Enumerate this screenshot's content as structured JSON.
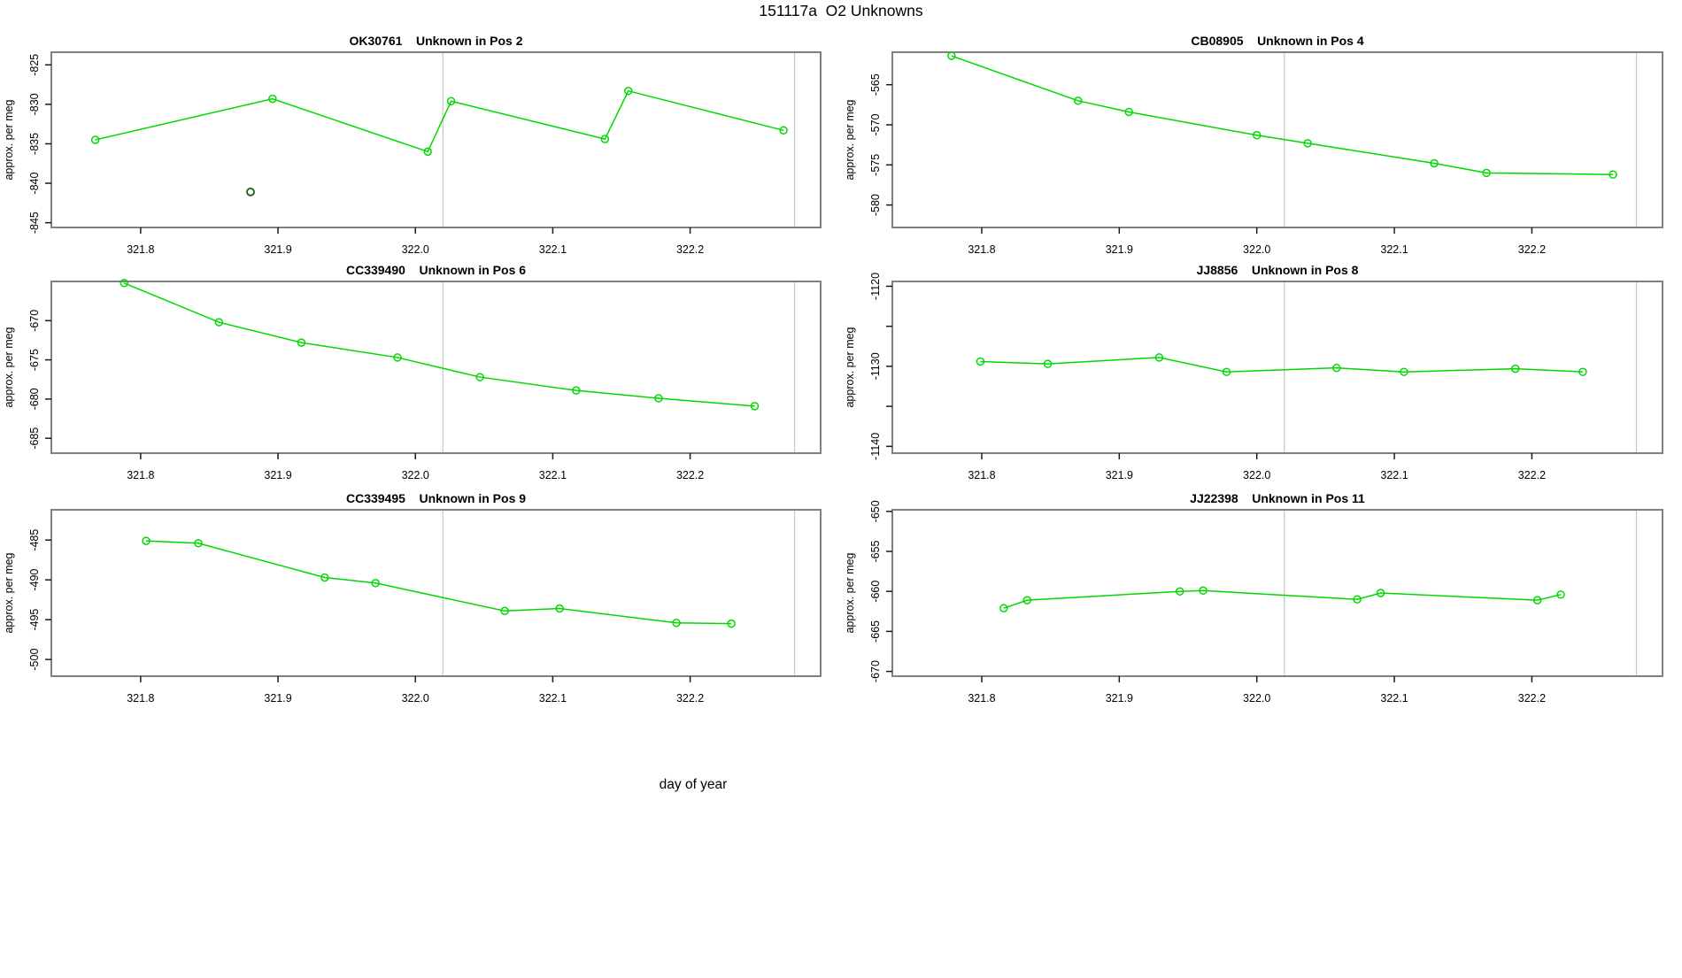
{
  "title": "151117a  O2 Unknowns",
  "xlabel": "day of year",
  "ylabel": "approx. per meg",
  "colors": {
    "series": "#00D900",
    "outlier": "#156415",
    "panel_border": "#808080",
    "ref_line": "#c6c6c6",
    "tick": "#1a1a1a",
    "text": "#000000"
  },
  "chart_data": {
    "type": "line",
    "title": "151117a  O2 Unknowns",
    "xlabel": "day of year",
    "ylabel": "approx. per meg",
    "layout_hint": "6 small-multiple panels, 2 columns x 3 rows, open-circle markers, no grid",
    "xlim": [
      321.735,
      322.295
    ],
    "xticks": [
      321.8,
      321.9,
      322.0,
      322.1,
      322.2
    ],
    "xtick_labels": [
      "321.8",
      "321.9",
      "322.0",
      "322.1",
      "322.2"
    ],
    "vlines": [
      322.02,
      322.276
    ],
    "panels": [
      {
        "sample": "OK30761",
        "desc": "Unknown in Pos 2",
        "ylim": [
          -845.6,
          -823.4
        ],
        "yticks": [
          -825,
          -830,
          -835,
          -840,
          -845
        ],
        "ytick_labels": [
          "-825",
          "-830",
          "-835",
          "-840",
          "-845"
        ],
        "x": [
          321.767,
          321.896,
          322.009,
          322.026,
          322.138,
          322.155,
          322.268
        ],
        "y": [
          -834.5,
          -829.3,
          -836.0,
          -829.6,
          -834.4,
          -828.3,
          -833.3
        ],
        "outliers": [
          {
            "x": 321.88,
            "y": -841.1
          }
        ]
      },
      {
        "sample": "CB08905",
        "desc": "Unknown in Pos 4",
        "ylim": [
          -582.8,
          -560.95
        ],
        "yticks": [
          -565,
          -570,
          -575,
          -580
        ],
        "ytick_labels": [
          "-565",
          "-570",
          "-575",
          "-580"
        ],
        "x": [
          321.778,
          321.87,
          321.907,
          322.0,
          322.037,
          322.129,
          322.167,
          322.259
        ],
        "y": [
          -561.4,
          -567.0,
          -568.4,
          -571.3,
          -572.3,
          -574.8,
          -576.0,
          -576.2
        ],
        "outliers": []
      },
      {
        "sample": "CC339490",
        "desc": "Unknown in Pos 6",
        "ylim": [
          -686.9,
          -665.0
        ],
        "yticks": [
          -670,
          -675,
          -680,
          -685
        ],
        "ytick_labels": [
          "-670",
          "-675",
          "-680",
          "-685"
        ],
        "x": [
          321.788,
          321.857,
          321.917,
          321.987,
          322.047,
          322.117,
          322.177,
          322.247
        ],
        "y": [
          -665.2,
          -670.2,
          -672.8,
          -674.7,
          -677.2,
          -678.9,
          -679.9,
          -680.9
        ],
        "outliers": []
      },
      {
        "sample": "JJ8856",
        "desc": "Unknown in Pos 8",
        "ylim": [
          -1140.85,
          -1119.4
        ],
        "yticks": [
          -1120,
          -1125,
          -1130,
          -1135,
          -1140
        ],
        "ytick_labels": [
          "-1120",
          "",
          "-1130",
          "",
          "-1140"
        ],
        "x": [
          321.799,
          321.848,
          321.929,
          321.978,
          322.058,
          322.107,
          322.188,
          322.237
        ],
        "y": [
          -1129.4,
          -1129.7,
          -1128.9,
          -1130.7,
          -1130.2,
          -1130.7,
          -1130.3,
          -1130.7
        ],
        "outliers": []
      },
      {
        "sample": "CC339495",
        "desc": "Unknown in Pos 9",
        "ylim": [
          -502.1,
          -481.2
        ],
        "yticks": [
          -485,
          -490,
          -495,
          -500
        ],
        "ytick_labels": [
          "-485",
          "-490",
          "-495",
          "-500"
        ],
        "x": [
          321.804,
          321.842,
          321.934,
          321.971,
          322.065,
          322.105,
          322.19,
          322.23
        ],
        "y": [
          -485.1,
          -485.4,
          -489.7,
          -490.4,
          -493.9,
          -493.6,
          -495.4,
          -495.5
        ],
        "outliers": []
      },
      {
        "sample": "JJ22398",
        "desc": "Unknown in Pos 11",
        "ylim": [
          -670.6,
          -649.8
        ],
        "yticks": [
          -650,
          -655,
          -660,
          -665,
          -670
        ],
        "ytick_labels": [
          "-650",
          "-655",
          "-660",
          "-665",
          "-670"
        ],
        "x": [
          321.816,
          321.833,
          321.944,
          321.961,
          322.073,
          322.09,
          322.204,
          322.221
        ],
        "y": [
          -662.1,
          -661.1,
          -660.0,
          -659.9,
          -661.0,
          -660.2,
          -661.1,
          -660.4
        ],
        "outliers": []
      }
    ]
  }
}
